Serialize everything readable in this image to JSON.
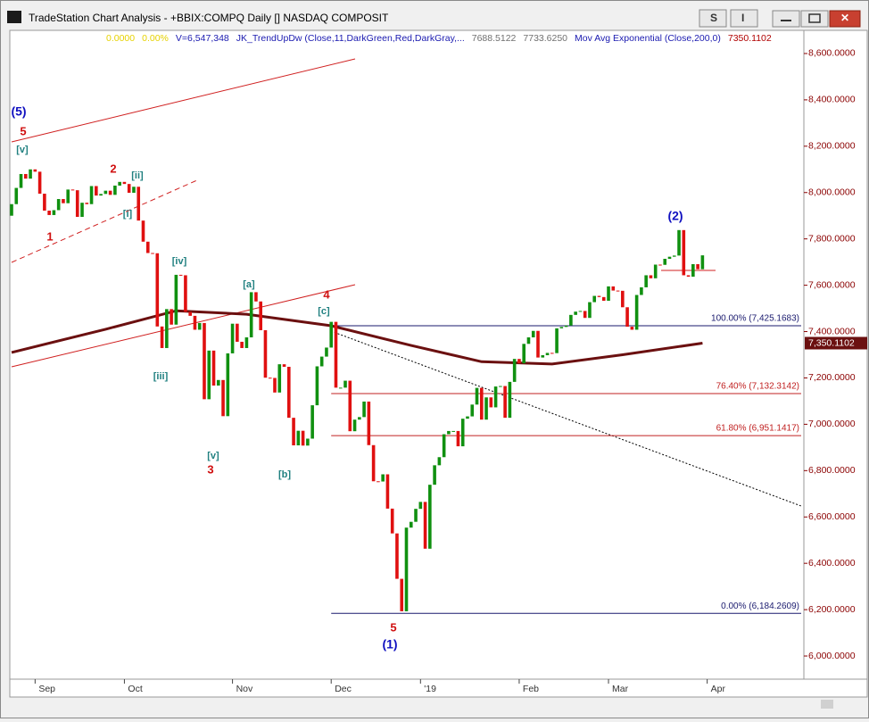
{
  "window_title": "TradeStation Chart Analysis - +BBIX:COMPQ Daily [] NASDAQ COMPOSIT",
  "info_line": [
    {
      "text": "0.0000",
      "color": "#e6d200"
    },
    {
      "text": "0.00%",
      "color": "#e6d200"
    },
    {
      "text": "V=6,547,348",
      "color": "#1a1ab0"
    },
    {
      "text": "JK_TrendUpDw (Close,11,DarkGreen,Red,DarkGray,...",
      "color": "#1a1ab0"
    },
    {
      "text": "7688.5122",
      "color": "#707070"
    },
    {
      "text": "7733.6250",
      "color": "#707070"
    },
    {
      "text": "Mov Avg Exponential (Close,200,0)",
      "color": "#1a1ab0"
    },
    {
      "text": "7350.1102",
      "color": "#b00000"
    }
  ],
  "chart_data": {
    "type": "candlestick",
    "up_color": "#109010",
    "down_color": "#e01010",
    "xlim": [
      0,
      168
    ],
    "ylim": [
      5900,
      8700
    ],
    "xticks": [
      {
        "value": 5,
        "label": "Sep"
      },
      {
        "value": 24,
        "label": "Oct"
      },
      {
        "value": 47,
        "label": "Nov"
      },
      {
        "value": 68,
        "label": "Dec"
      },
      {
        "value": 87,
        "label": "'19"
      },
      {
        "value": 108,
        "label": "Feb"
      },
      {
        "value": 127,
        "label": "Mar"
      },
      {
        "value": 148,
        "label": "Apr"
      }
    ],
    "yticks": [
      {
        "value": 6000,
        "label": "6,000.0000"
      },
      {
        "value": 6200,
        "label": "6,200.0000"
      },
      {
        "value": 6400,
        "label": "6,400.0000"
      },
      {
        "value": 6600,
        "label": "6,600.0000"
      },
      {
        "value": 6800,
        "label": "6,800.0000"
      },
      {
        "value": 7000,
        "label": "7,000.0000"
      },
      {
        "value": 7200,
        "label": "7,200.0000"
      },
      {
        "value": 7400,
        "label": "7,400.0000"
      },
      {
        "value": 7600,
        "label": "7,600.0000"
      },
      {
        "value": 7800,
        "label": "7,800.0000"
      },
      {
        "value": 8000,
        "label": "8,000.0000"
      },
      {
        "value": 8200,
        "label": "8,200.0000"
      },
      {
        "value": 8400,
        "label": "8,400.0000"
      },
      {
        "value": 8600,
        "label": "8,600.0000"
      }
    ],
    "open": [
      7900,
      7950,
      8020,
      8080,
      8060,
      8100,
      8090,
      7995,
      7922,
      7903,
      7924,
      7972,
      7954,
      8013,
      8010,
      7895,
      7956,
      7950,
      8028,
      7987,
      7994,
      8008,
      7990,
      8030,
      8046,
      8037,
      7999,
      8025,
      7879,
      7788,
      7739,
      7738,
      7422,
      7329,
      7497,
      7430,
      7645,
      7643,
      7485,
      7468,
      7408,
      7437,
      7108,
      7318,
      7167,
      7191,
      7035,
      7306,
      7434,
      7356,
      7329,
      7375,
      7570,
      7530,
      7406,
      7201,
      7200,
      7137,
      7259,
      7248,
      7028,
      6909,
      6972,
      6908,
      6938,
      7082,
      7250,
      7292,
      7331,
      7442,
      7158,
      7158,
      7188,
      6970,
      7020,
      7031,
      7098,
      6910,
      6754,
      6753,
      6784,
      6636,
      6529,
      6333,
      6193,
      6554,
      6579,
      6635,
      6665,
      6463,
      6739,
      6823,
      6858,
      6957,
      6971,
      6971,
      6905,
      7024,
      7034,
      7085,
      7157,
      7020,
      7116,
      7073,
      7163,
      7165,
      7028,
      7183,
      7282,
      7263,
      7347,
      7375,
      7403,
      7288,
      7298,
      7308,
      7307,
      7414,
      7420,
      7426,
      7472,
      7486,
      7489,
      7459,
      7527,
      7554,
      7549,
      7533,
      7595,
      7577,
      7576,
      7505,
      7421,
      7408,
      7558,
      7591,
      7643,
      7630,
      7689,
      7688,
      7714,
      7723,
      7728,
      7838,
      7643,
      7637,
      7691,
      7669
    ],
    "close": [
      7950,
      8020,
      8080,
      8060,
      8100,
      8090,
      7995,
      7922,
      7903,
      7924,
      7972,
      7954,
      8013,
      8010,
      7895,
      7956,
      7950,
      8028,
      7987,
      7994,
      8008,
      7990,
      8030,
      8046,
      8037,
      7999,
      8025,
      7879,
      7788,
      7739,
      7738,
      7422,
      7329,
      7497,
      7430,
      7645,
      7643,
      7485,
      7468,
      7408,
      7437,
      7108,
      7318,
      7167,
      7191,
      7035,
      7306,
      7434,
      7356,
      7329,
      7375,
      7570,
      7530,
      7406,
      7201,
      7200,
      7137,
      7259,
      7248,
      7028,
      6909,
      6972,
      6908,
      6938,
      7082,
      7250,
      7292,
      7331,
      7442,
      7158,
      7158,
      7188,
      6970,
      7020,
      7031,
      7098,
      6910,
      6754,
      6753,
      6784,
      6636,
      6529,
      6333,
      6193,
      6554,
      6579,
      6635,
      6665,
      6463,
      6739,
      6823,
      6858,
      6957,
      6971,
      6971,
      6905,
      7024,
      7034,
      7085,
      7157,
      7020,
      7116,
      7073,
      7163,
      7165,
      7028,
      7183,
      7282,
      7263,
      7347,
      7375,
      7403,
      7288,
      7298,
      7308,
      7307,
      7414,
      7420,
      7426,
      7472,
      7486,
      7489,
      7459,
      7527,
      7554,
      7549,
      7533,
      7595,
      7577,
      7576,
      7505,
      7421,
      7408,
      7558,
      7591,
      7643,
      7630,
      7689,
      7688,
      7714,
      7723,
      7728,
      7838,
      7643,
      7637,
      7691,
      7669,
      7729
    ],
    "ema": {
      "color": "#6b1010",
      "x": [
        0,
        20,
        35,
        50,
        68,
        85,
        100,
        115,
        130,
        147
      ],
      "values": [
        7310,
        7410,
        7490,
        7475,
        7425,
        7340,
        7270,
        7260,
        7300,
        7350
      ]
    },
    "last_value_label": {
      "value": 7350.1102,
      "label": "7,350.1102"
    },
    "fib_levels": [
      {
        "value": 7425.1683,
        "label": "100.00% (7,425.1683)",
        "color": "#1a1a6e"
      },
      {
        "value": 7132.3142,
        "label": "76.40% (7,132.3142)",
        "color": "#c02020"
      },
      {
        "value": 6951.1417,
        "label": "61.80% (6,951.1417)",
        "color": "#c02020"
      },
      {
        "value": 6184.2609,
        "label": "0.00% (6,184.2609)",
        "color": "#1a1a6e"
      }
    ],
    "annotations": [
      {
        "text": "(5)",
        "color": "#1010c0"
      },
      {
        "text": "5",
        "color": "#d01010"
      },
      {
        "text": "[v]",
        "color": "#208080"
      },
      {
        "text": "2",
        "color": "#d01010"
      },
      {
        "text": "[ii]",
        "color": "#208080"
      },
      {
        "text": "[i]",
        "color": "#208080"
      },
      {
        "text": "1",
        "color": "#d01010"
      },
      {
        "text": "[iv]",
        "color": "#208080"
      },
      {
        "text": "[iii]",
        "color": "#208080"
      },
      {
        "text": "[a]",
        "color": "#208080"
      },
      {
        "text": "4",
        "color": "#d01010"
      },
      {
        "text": "[c]",
        "color": "#208080"
      },
      {
        "text": "[v]",
        "color": "#208080"
      },
      {
        "text": "3",
        "color": "#d01010"
      },
      {
        "text": "[b]",
        "color": "#208080"
      },
      {
        "text": "5",
        "color": "#d01010"
      },
      {
        "text": "(1)",
        "color": "#1010c0"
      },
      {
        "text": "(2)",
        "color": "#1010c0"
      }
    ]
  }
}
